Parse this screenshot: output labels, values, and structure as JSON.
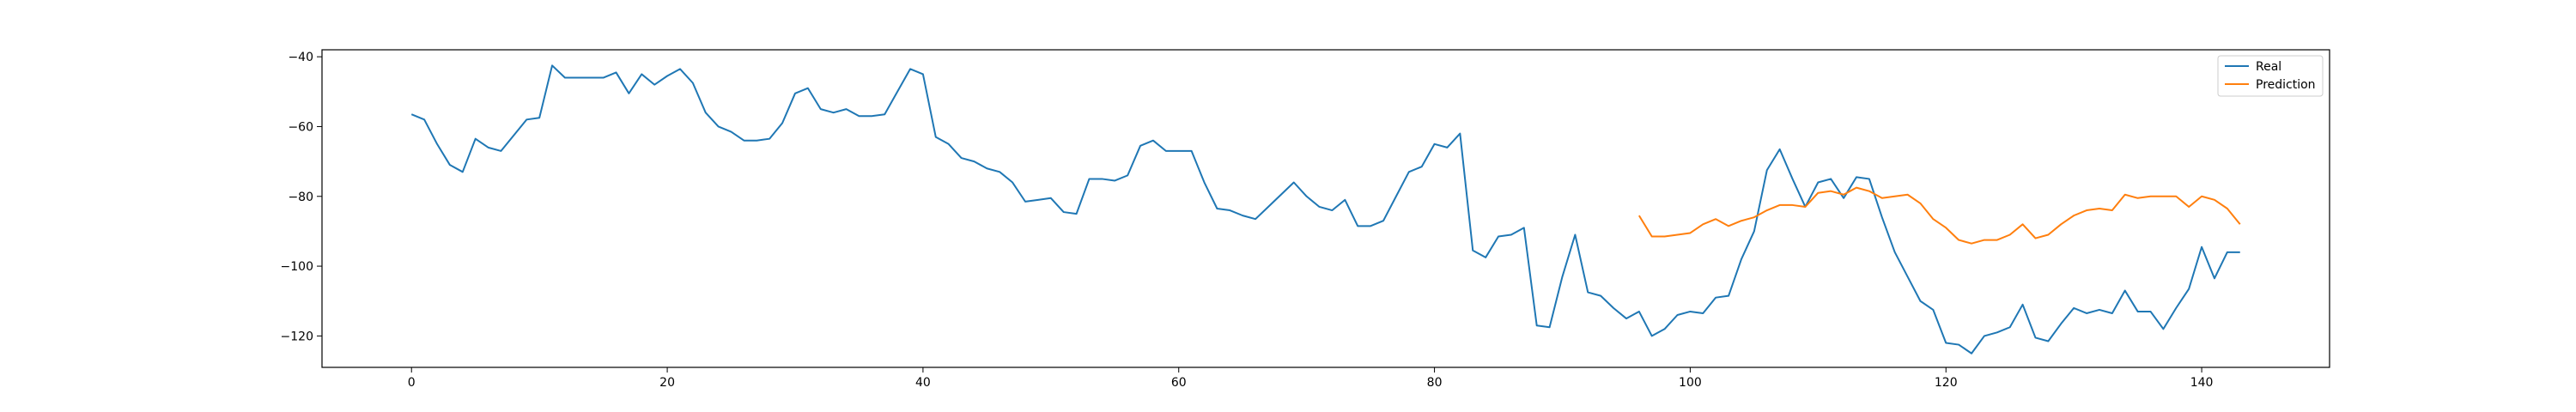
{
  "chart_data": {
    "type": "line",
    "title": "",
    "xlabel": "",
    "ylabel": "",
    "xlim": [
      -7,
      150
    ],
    "ylim": [
      -129,
      -38
    ],
    "xticks": [
      0,
      20,
      40,
      60,
      80,
      100,
      120,
      140
    ],
    "yticks": [
      -40,
      -60,
      -80,
      -100,
      -120
    ],
    "xtick_labels": [
      "0",
      "20",
      "40",
      "60",
      "80",
      "100",
      "120",
      "140"
    ],
    "ytick_labels": [
      "−40",
      "−60",
      "−80",
      "−100",
      "−120"
    ],
    "grid": false,
    "legend_position": "top-right",
    "series": [
      {
        "name": "Real",
        "color": "#1f77b4",
        "x": [
          0,
          1,
          2,
          3,
          4,
          5,
          6,
          7,
          8,
          9,
          10,
          11,
          12,
          13,
          14,
          15,
          16,
          17,
          18,
          19,
          20,
          21,
          22,
          23,
          24,
          25,
          26,
          27,
          28,
          29,
          30,
          31,
          32,
          33,
          34,
          35,
          36,
          37,
          38,
          39,
          40,
          41,
          42,
          43,
          44,
          45,
          46,
          47,
          48,
          49,
          50,
          51,
          52,
          53,
          54,
          55,
          56,
          57,
          58,
          59,
          60,
          61,
          62,
          63,
          64,
          65,
          66,
          67,
          68,
          69,
          70,
          71,
          72,
          73,
          74,
          75,
          76,
          77,
          78,
          79,
          80,
          81,
          82,
          83,
          84,
          85,
          86,
          87,
          88,
          89,
          90,
          91,
          92,
          93,
          94,
          95,
          96,
          97,
          98,
          99,
          100,
          101,
          102,
          103,
          104,
          105,
          106,
          107,
          108,
          109,
          110,
          111,
          112,
          113,
          114,
          115,
          116,
          117,
          118,
          119,
          120,
          121,
          122,
          123,
          124,
          125,
          126,
          127,
          128,
          129,
          130,
          131,
          132,
          133,
          134,
          135,
          136,
          137,
          138,
          139,
          140,
          141,
          142,
          143
        ],
        "y": [
          -56.5,
          -58,
          -65,
          -71,
          -73,
          -63.5,
          -66,
          -67,
          -62.5,
          -58,
          -57.5,
          -42.5,
          -46,
          -46,
          -46,
          -46,
          -44.5,
          -50.5,
          -45,
          -48,
          -45.5,
          -43.5,
          -47.5,
          -56,
          -60,
          -61.5,
          -64,
          -64,
          -63.5,
          -59,
          -50.5,
          -49,
          -55,
          -56,
          -55,
          -57,
          -57,
          -56.5,
          -50,
          -43.5,
          -45,
          -63,
          -65,
          -69,
          -70,
          -72,
          -73,
          -76,
          -81.5,
          -81,
          -80.5,
          -84.5,
          -85,
          -75,
          -75,
          -75.5,
          -74,
          -65.5,
          -64,
          -67,
          -67,
          -67,
          -76,
          -83.5,
          -84,
          -85.5,
          -86.5,
          -83,
          -79.5,
          -76,
          -80,
          -83,
          -84,
          -81,
          -88.5,
          -88.5,
          -87,
          -80,
          -73,
          -71.5,
          -65,
          -66,
          -62,
          -95.5,
          -97.5,
          -91.5,
          -91,
          -89,
          -117,
          -117.5,
          -103,
          -91,
          -107.5,
          -108.5,
          -112,
          -115,
          -113,
          -120,
          -118,
          -114,
          -113,
          -113.5,
          -109,
          -108.5,
          -98,
          -90,
          -72.5,
          -66.5,
          -75,
          -83,
          -76,
          -75,
          -80.5,
          -74.5,
          -75,
          -86,
          -96,
          -103,
          -110,
          -112.5,
          -122,
          -122.5,
          -125,
          -120,
          -119,
          -117.5,
          -111,
          -120.5,
          -121.5,
          -116.5,
          -112,
          -113.5,
          -112.5,
          -113.5,
          -107,
          -113,
          -113,
          -118,
          -112,
          -106.5,
          -94.5,
          -103.5,
          -96,
          -96
        ]
      },
      {
        "name": "Prediction",
        "color": "#ff7f0e",
        "x": [
          96,
          97,
          98,
          99,
          100,
          101,
          102,
          103,
          104,
          105,
          106,
          107,
          108,
          109,
          110,
          111,
          112,
          113,
          114,
          115,
          116,
          117,
          118,
          119,
          120,
          121,
          122,
          123,
          124,
          125,
          126,
          127,
          128,
          129,
          130,
          131,
          132,
          133,
          134,
          135,
          136,
          137,
          138,
          139,
          140,
          141,
          142,
          143
        ],
        "y": [
          -85.5,
          -91.5,
          -91.5,
          -91,
          -90.5,
          -88,
          -86.5,
          -88.5,
          -87,
          -86,
          -84,
          -82.5,
          -82.5,
          -83,
          -79,
          -78.5,
          -79.5,
          -77.5,
          -78.5,
          -80.5,
          -80,
          -79.5,
          -82,
          -86.5,
          -89,
          -92.5,
          -93.5,
          -92.5,
          -92.5,
          -91,
          -88,
          -92,
          -91,
          -88,
          -85.5,
          -84,
          -83.5,
          -84,
          -79.5,
          -80.5,
          -80,
          -80,
          -80,
          -83,
          -80,
          -81,
          -83.5,
          -88
        ]
      }
    ]
  }
}
